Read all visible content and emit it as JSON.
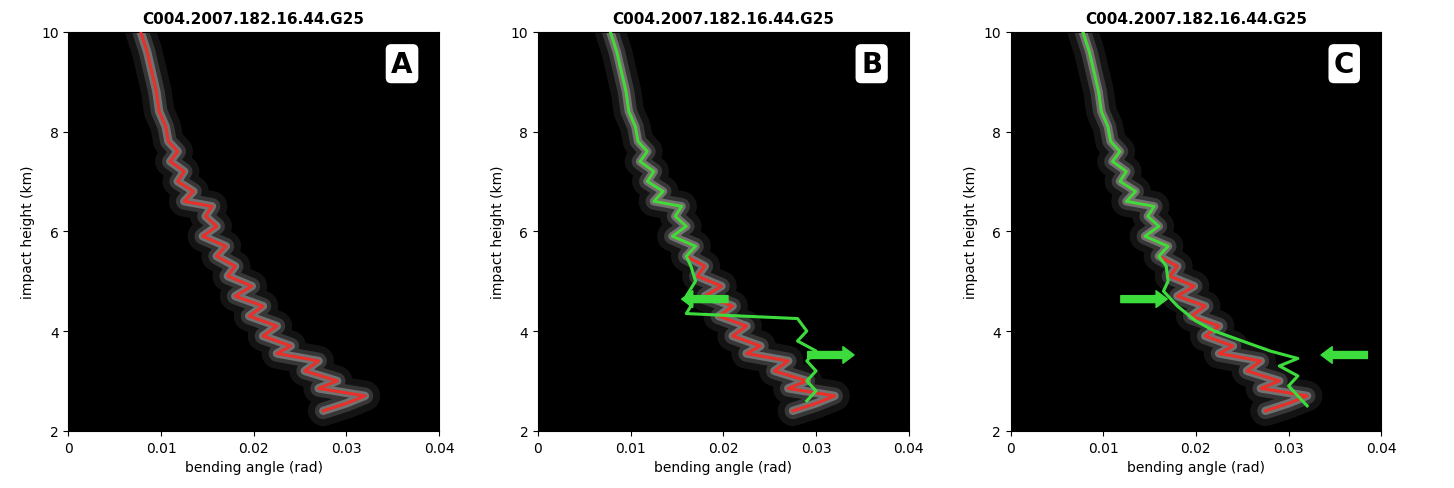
{
  "chart_data": [
    {
      "type": "line",
      "title": "C004.2007.182.16.44.G25",
      "annotations": [
        "A"
      ],
      "x_label": "bending angle (rad)",
      "y_label": "impact height (km)",
      "xlim": [
        0,
        0.04
      ],
      "ylim": [
        2,
        10
      ],
      "xticks": [
        0,
        0.01,
        0.02,
        0.03,
        0.04
      ],
      "yticks": [
        2,
        4,
        6,
        8,
        10
      ],
      "series": [
        {
          "color": "#e8302a",
          "x": [
            0.0078,
            0.0085,
            0.009,
            0.0095,
            0.0098,
            0.0105,
            0.0108,
            0.0118,
            0.011,
            0.0125,
            0.0118,
            0.0135,
            0.0125,
            0.0155,
            0.0148,
            0.016,
            0.0145,
            0.017,
            0.016,
            0.018,
            0.0172,
            0.0198,
            0.018,
            0.021,
            0.0195,
            0.0225,
            0.021,
            0.024,
            0.0225,
            0.027,
            0.0255,
            0.029,
            0.027,
            0.032,
            0.03,
            0.0275
          ],
          "y": [
            10,
            9.6,
            9.2,
            8.8,
            8.4,
            8.1,
            7.8,
            7.6,
            7.4,
            7.2,
            7.0,
            6.8,
            6.6,
            6.5,
            6.3,
            6.1,
            5.9,
            5.7,
            5.5,
            5.3,
            5.1,
            4.9,
            4.7,
            4.5,
            4.3,
            4.1,
            3.9,
            3.7,
            3.55,
            3.4,
            3.2,
            3.0,
            2.85,
            2.7,
            2.55,
            2.4
          ]
        }
      ]
    },
    {
      "type": "line",
      "title": "C004.2007.182.16.44.G25",
      "annotations": [
        "B"
      ],
      "x_label": "bending angle (rad)",
      "y_label": "impact height (km)",
      "xlim": [
        0,
        0.04
      ],
      "ylim": [
        2,
        10
      ],
      "xticks": [
        0,
        0.01,
        0.02,
        0.03,
        0.04
      ],
      "yticks": [
        2,
        4,
        6,
        8,
        10
      ],
      "series": [
        {
          "color": "#e8302a",
          "x": [
            0.0078,
            0.0085,
            0.009,
            0.0095,
            0.0098,
            0.0105,
            0.0108,
            0.0118,
            0.011,
            0.0125,
            0.0118,
            0.0135,
            0.0125,
            0.0155,
            0.0148,
            0.016,
            0.0145,
            0.017,
            0.016,
            0.018,
            0.0172,
            0.0198,
            0.018,
            0.021,
            0.0195,
            0.0225,
            0.021,
            0.024,
            0.0225,
            0.027,
            0.0255,
            0.029,
            0.027,
            0.032,
            0.03,
            0.0275
          ],
          "y": [
            10,
            9.6,
            9.2,
            8.8,
            8.4,
            8.1,
            7.8,
            7.6,
            7.4,
            7.2,
            7.0,
            6.8,
            6.6,
            6.5,
            6.3,
            6.1,
            5.9,
            5.7,
            5.5,
            5.3,
            5.1,
            4.9,
            4.7,
            4.5,
            4.3,
            4.1,
            3.9,
            3.7,
            3.55,
            3.4,
            3.2,
            3.0,
            2.85,
            2.7,
            2.55,
            2.4
          ]
        },
        {
          "color": "#3ddc3d",
          "x": [
            0.0078,
            0.0085,
            0.009,
            0.0095,
            0.0098,
            0.0105,
            0.0108,
            0.0118,
            0.011,
            0.0125,
            0.0118,
            0.0135,
            0.0125,
            0.0155,
            0.0148,
            0.016,
            0.0145,
            0.017,
            0.016,
            0.0165,
            0.017,
            0.016,
            0.0165,
            0.016,
            0.022,
            0.028,
            0.029,
            0.028,
            0.03,
            0.029,
            0.03,
            0.029,
            0.03,
            0.029
          ],
          "y": [
            10,
            9.6,
            9.2,
            8.8,
            8.4,
            8.1,
            7.8,
            7.6,
            7.4,
            7.2,
            7.0,
            6.8,
            6.6,
            6.5,
            6.3,
            6.1,
            5.9,
            5.7,
            5.5,
            5.3,
            5.0,
            4.7,
            4.5,
            4.35,
            4.3,
            4.25,
            4.0,
            3.8,
            3.6,
            3.4,
            3.2,
            3.0,
            2.8,
            2.6
          ]
        }
      ]
    },
    {
      "type": "line",
      "title": "C004.2007.182.16.44.G25",
      "annotations": [
        "C"
      ],
      "x_label": "bending angle (rad)",
      "y_label": "impact height (km)",
      "xlim": [
        0,
        0.04
      ],
      "ylim": [
        2,
        10
      ],
      "xticks": [
        0,
        0.01,
        0.02,
        0.03,
        0.04
      ],
      "yticks": [
        2,
        4,
        6,
        8,
        10
      ],
      "series": [
        {
          "color": "#e8302a",
          "x": [
            0.0078,
            0.0085,
            0.009,
            0.0095,
            0.0098,
            0.0105,
            0.0108,
            0.0118,
            0.011,
            0.0125,
            0.0118,
            0.0135,
            0.0125,
            0.0155,
            0.0148,
            0.016,
            0.0145,
            0.017,
            0.016,
            0.018,
            0.0172,
            0.0198,
            0.018,
            0.021,
            0.0195,
            0.0225,
            0.021,
            0.024,
            0.0225,
            0.027,
            0.0255,
            0.029,
            0.027,
            0.032,
            0.03,
            0.0275
          ],
          "y": [
            10,
            9.6,
            9.2,
            8.8,
            8.4,
            8.1,
            7.8,
            7.6,
            7.4,
            7.2,
            7.0,
            6.8,
            6.6,
            6.5,
            6.3,
            6.1,
            5.9,
            5.7,
            5.5,
            5.3,
            5.1,
            4.9,
            4.7,
            4.5,
            4.3,
            4.1,
            3.9,
            3.7,
            3.55,
            3.4,
            3.2,
            3.0,
            2.85,
            2.7,
            2.55,
            2.4
          ]
        },
        {
          "color": "#3ddc3d",
          "x": [
            0.0078,
            0.0085,
            0.009,
            0.0095,
            0.0098,
            0.0105,
            0.0108,
            0.0118,
            0.011,
            0.0125,
            0.0118,
            0.0135,
            0.0125,
            0.0155,
            0.0148,
            0.016,
            0.0145,
            0.017,
            0.016,
            0.0168,
            0.017,
            0.0165,
            0.018,
            0.02,
            0.022,
            0.025,
            0.028,
            0.031,
            0.029,
            0.031,
            0.03,
            0.031,
            0.032
          ],
          "y": [
            10,
            9.6,
            9.2,
            8.8,
            8.4,
            8.1,
            7.8,
            7.6,
            7.4,
            7.2,
            7.0,
            6.8,
            6.6,
            6.5,
            6.3,
            6.1,
            5.9,
            5.7,
            5.5,
            5.3,
            5.0,
            4.8,
            4.5,
            4.2,
            4.0,
            3.8,
            3.6,
            3.45,
            3.3,
            3.1,
            2.9,
            2.7,
            2.5
          ]
        }
      ]
    }
  ]
}
